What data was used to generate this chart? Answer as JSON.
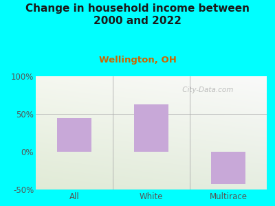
{
  "title": "Change in household income between\n2000 and 2022",
  "subtitle": "Wellington, OH",
  "categories": [
    "All",
    "White",
    "Multirace"
  ],
  "values": [
    45,
    63,
    -43
  ],
  "bar_color": "#c8a8d8",
  "bg_color": "#00ffff",
  "title_color": "#1a1a1a",
  "subtitle_color": "#cc6600",
  "ylim": [
    -50,
    100
  ],
  "yticks": [
    -50,
    0,
    50,
    100
  ],
  "ytick_labels": [
    "-50%",
    "0%",
    "50%",
    "100%"
  ],
  "title_fontsize": 11,
  "subtitle_fontsize": 9.5,
  "tick_fontsize": 8.5,
  "bar_width": 0.45,
  "watermark": " City-Data.com"
}
